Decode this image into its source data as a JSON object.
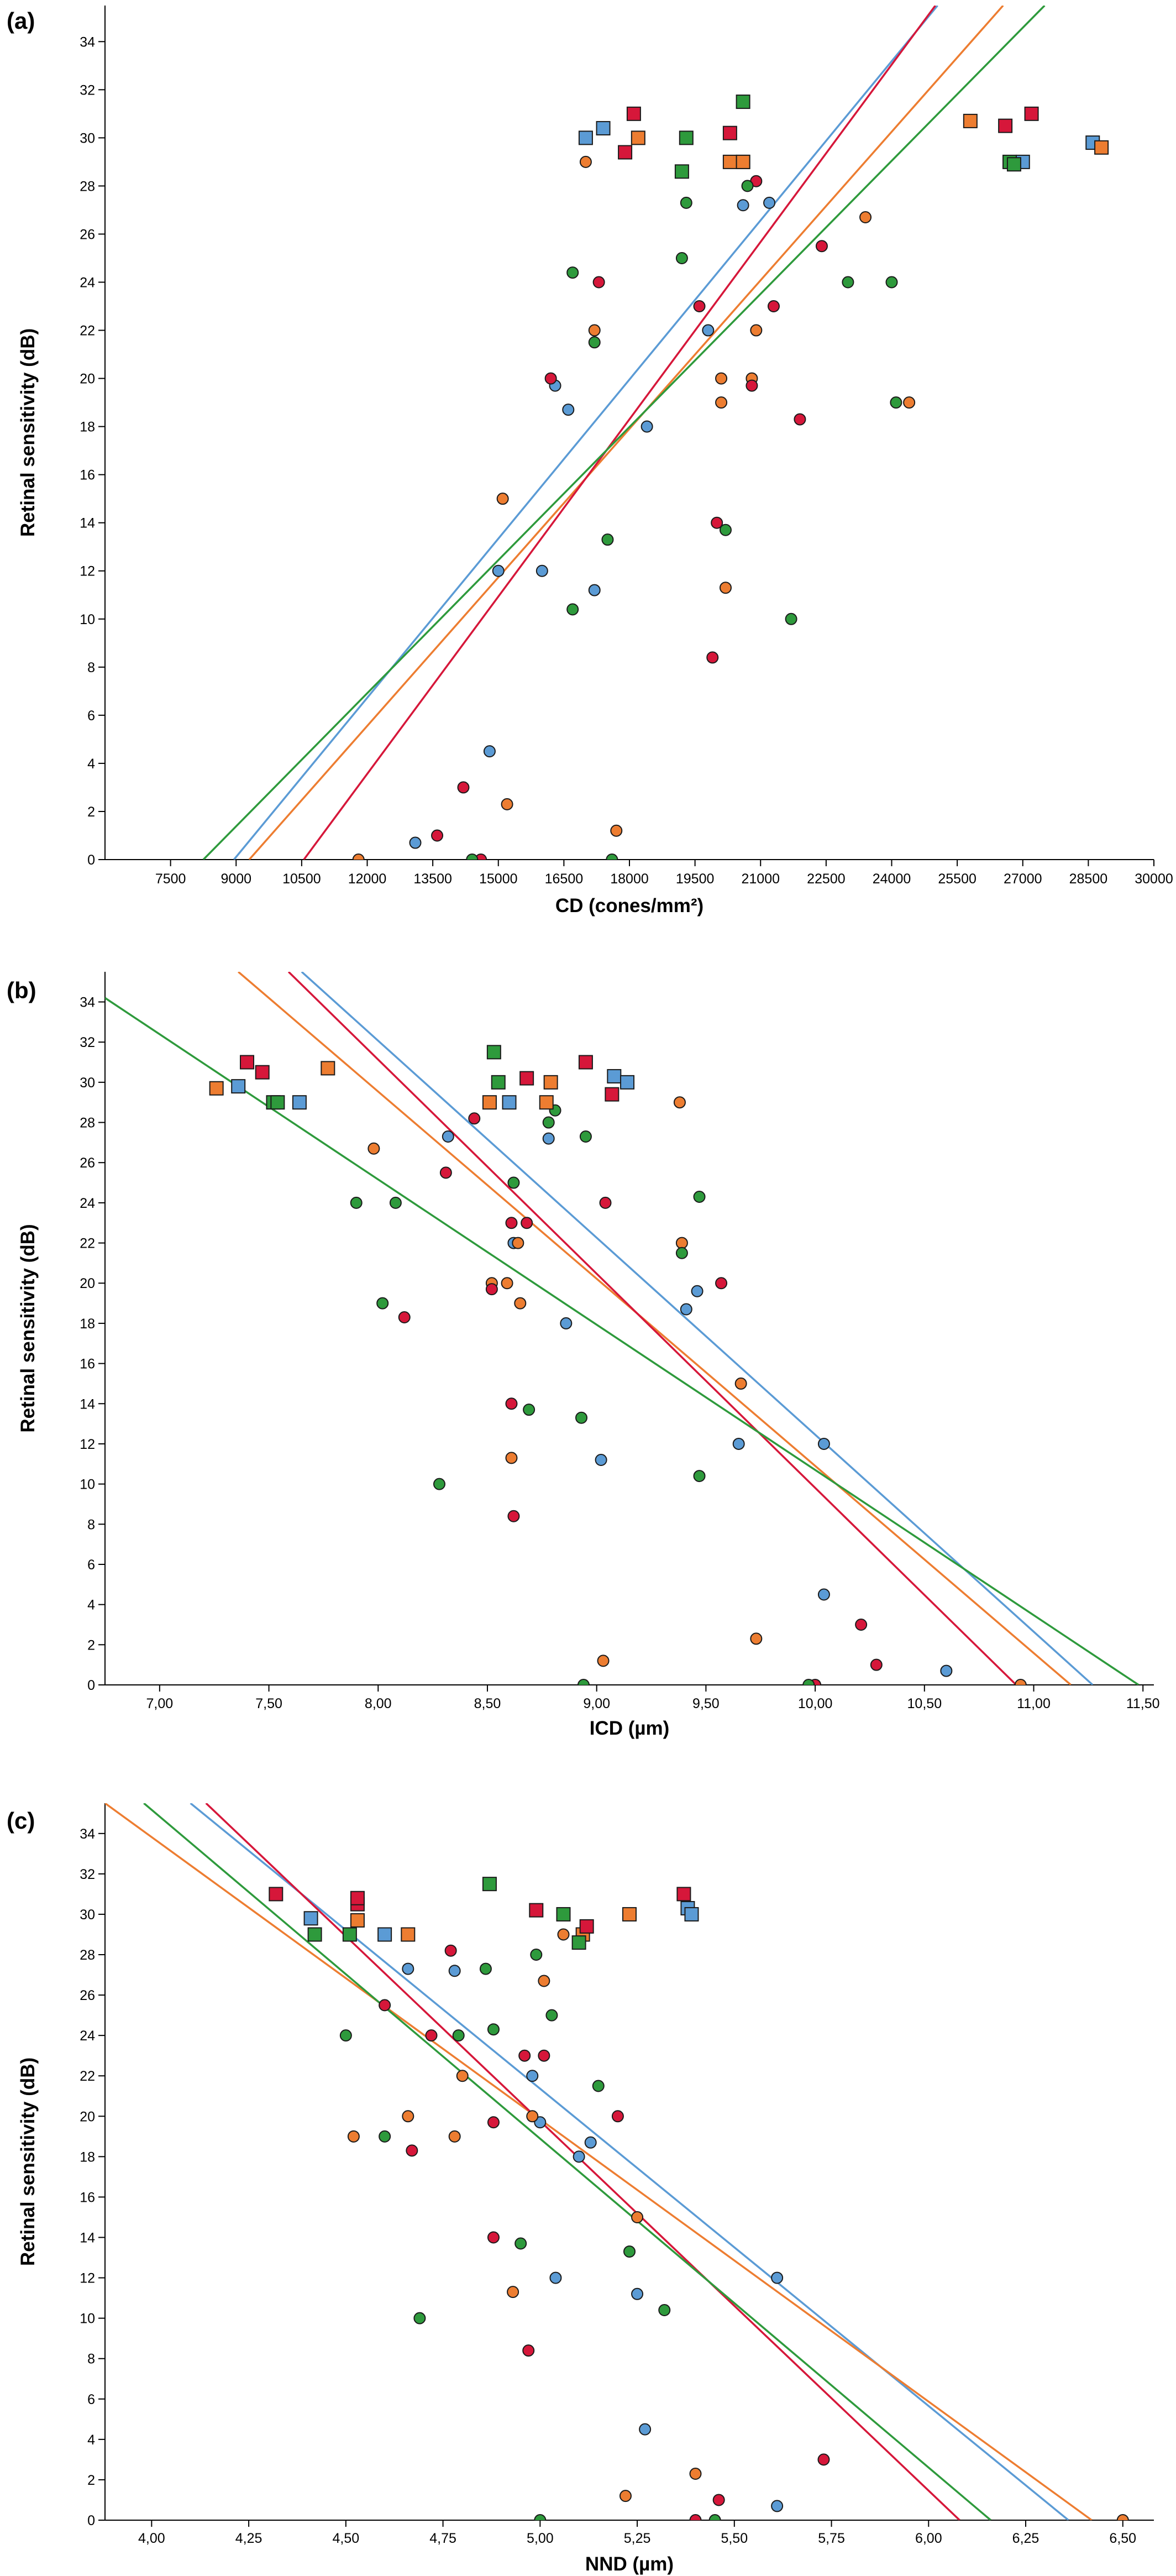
{
  "colors": {
    "blue": "#5b9bd5",
    "orange": "#ed7d31",
    "red": "#d6173a",
    "green": "#2e9a3c"
  },
  "chart_data": [
    {
      "type": "scatter",
      "panel_label": "(a)",
      "title": "",
      "xlabel": "CD (cones/mm²)",
      "ylabel": "Retinal sensitivity (dB)",
      "xlim": [
        6000,
        30000
      ],
      "ylim": [
        0,
        35.5
      ],
      "x_ticks": [
        "7500",
        "9000",
        "10500",
        "12000",
        "13500",
        "15000",
        "16500",
        "18000",
        "19500",
        "21000",
        "22500",
        "24000",
        "25500",
        "27000",
        "28500",
        "30000"
      ],
      "x_tick_values": [
        7500,
        9000,
        10500,
        12000,
        13500,
        15000,
        16500,
        18000,
        19500,
        21000,
        22500,
        24000,
        25500,
        27000,
        28500,
        30000
      ],
      "y_ticks": [
        "0",
        "2",
        "4",
        "6",
        "8",
        "10",
        "12",
        "14",
        "16",
        "18",
        "20",
        "22",
        "24",
        "26",
        "28",
        "30",
        "32",
        "34"
      ],
      "y_tick_values": [
        0,
        2,
        4,
        6,
        8,
        10,
        12,
        14,
        16,
        18,
        20,
        22,
        24,
        26,
        28,
        30,
        32,
        34
      ],
      "fit_lines": [
        {
          "color": "blue",
          "x1": 8950,
          "y1": 0,
          "x2": 25050,
          "y2": 35.5
        },
        {
          "color": "orange",
          "x1": 9300,
          "y1": 0,
          "x2": 26550,
          "y2": 35.5
        },
        {
          "color": "red",
          "x1": 10550,
          "y1": 0,
          "x2": 25000,
          "y2": 35.5
        },
        {
          "color": "green",
          "x1": 8250,
          "y1": 0,
          "x2": 27500,
          "y2": 35.5
        }
      ],
      "circles": {
        "blue": [
          [
            15000,
            12
          ],
          [
            16000,
            12
          ],
          [
            16300,
            19.7
          ],
          [
            16600,
            18.7
          ],
          [
            17200,
            11.2
          ],
          [
            18400,
            18
          ],
          [
            19800,
            22
          ],
          [
            20600,
            27.2
          ],
          [
            21200,
            27.3
          ],
          [
            14800,
            4.5
          ],
          [
            13100,
            0.7
          ]
        ],
        "orange": [
          [
            11800,
            0
          ],
          [
            15100,
            15
          ],
          [
            15200,
            2.3
          ],
          [
            17000,
            29
          ],
          [
            17200,
            22
          ],
          [
            17700,
            1.2
          ],
          [
            20100,
            19
          ],
          [
            20100,
            20
          ],
          [
            20200,
            11.3
          ],
          [
            20800,
            20
          ],
          [
            20900,
            22
          ],
          [
            23400,
            26.7
          ],
          [
            24400,
            19
          ]
        ],
        "red": [
          [
            13600,
            1
          ],
          [
            14200,
            3
          ],
          [
            14600,
            0
          ],
          [
            16200,
            20
          ],
          [
            17300,
            24
          ],
          [
            19600,
            23
          ],
          [
            20000,
            14
          ],
          [
            19900,
            8.4
          ],
          [
            20800,
            19.7
          ],
          [
            20900,
            28.2
          ],
          [
            21300,
            23
          ],
          [
            21900,
            18.3
          ],
          [
            22400,
            25.5
          ]
        ],
        "green": [
          [
            14400,
            0
          ],
          [
            16700,
            24.4
          ],
          [
            16700,
            10.4
          ],
          [
            17500,
            13.3
          ],
          [
            17600,
            0
          ],
          [
            17200,
            21.5
          ],
          [
            19300,
            27.3
          ],
          [
            19200,
            25
          ],
          [
            20200,
            13.7
          ],
          [
            20700,
            28
          ],
          [
            21700,
            10
          ],
          [
            23000,
            24
          ],
          [
            24000,
            24
          ],
          [
            24100,
            19
          ]
        ]
      },
      "squares": {
        "blue": [
          [
            17000,
            30
          ],
          [
            17400,
            30.4
          ],
          [
            20600,
            29
          ],
          [
            27000,
            29
          ],
          [
            28600,
            29.8
          ]
        ],
        "orange": [
          [
            18200,
            30
          ],
          [
            20300,
            29
          ],
          [
            20600,
            29
          ],
          [
            25800,
            30.7
          ],
          [
            28800,
            29.6
          ]
        ],
        "red": [
          [
            17900,
            29.4
          ],
          [
            18100,
            31
          ],
          [
            20300,
            30.2
          ],
          [
            26600,
            30.5
          ],
          [
            27200,
            31
          ]
        ],
        "green": [
          [
            19200,
            28.6
          ],
          [
            19300,
            30
          ],
          [
            20600,
            31.5
          ],
          [
            26700,
            29
          ],
          [
            26800,
            28.9
          ]
        ]
      }
    },
    {
      "type": "scatter",
      "panel_label": "(b)",
      "title": "",
      "xlabel": "ICD (µm)",
      "ylabel": "Retinal sensitivity (dB)",
      "xlim": [
        6.75,
        11.55
      ],
      "ylim": [
        0,
        35.5
      ],
      "x_ticks": [
        "7,00",
        "7,50",
        "8,00",
        "8,50",
        "9,00",
        "9,50",
        "10,00",
        "10,50",
        "11,00",
        "11,50"
      ],
      "x_tick_values": [
        7.0,
        7.5,
        8.0,
        8.5,
        9.0,
        9.5,
        10.0,
        10.5,
        11.0,
        11.5
      ],
      "y_ticks": [
        "0",
        "2",
        "4",
        "6",
        "8",
        "10",
        "12",
        "14",
        "16",
        "18",
        "20",
        "22",
        "24",
        "26",
        "28",
        "30",
        "32",
        "34"
      ],
      "y_tick_values": [
        0,
        2,
        4,
        6,
        8,
        10,
        12,
        14,
        16,
        18,
        20,
        22,
        24,
        26,
        28,
        30,
        32,
        34
      ],
      "fit_lines": [
        {
          "color": "blue",
          "x1": 7.65,
          "y1": 35.5,
          "x2": 11.27,
          "y2": 0
        },
        {
          "color": "orange",
          "x1": 7.36,
          "y1": 35.5,
          "x2": 11.17,
          "y2": 0
        },
        {
          "color": "red",
          "x1": 7.59,
          "y1": 35.5,
          "x2": 10.92,
          "y2": 0
        },
        {
          "color": "green",
          "x1": 6.75,
          "y1": 34.2,
          "x2": 11.48,
          "y2": 0
        }
      ],
      "circles": {
        "blue": [
          [
            8.32,
            27.3
          ],
          [
            8.78,
            27.2
          ],
          [
            8.62,
            22
          ],
          [
            8.86,
            18
          ],
          [
            9.02,
            11.2
          ],
          [
            9.41,
            18.7
          ],
          [
            9.46,
            19.6
          ],
          [
            9.65,
            12
          ],
          [
            10.04,
            12
          ],
          [
            10.04,
            4.5
          ],
          [
            10.6,
            0.7
          ]
        ],
        "orange": [
          [
            7.98,
            26.7
          ],
          [
            8.52,
            20
          ],
          [
            8.59,
            20
          ],
          [
            8.64,
            22
          ],
          [
            8.65,
            19
          ],
          [
            8.61,
            11.3
          ],
          [
            9.03,
            1.2
          ],
          [
            9.38,
            29
          ],
          [
            9.39,
            22
          ],
          [
            9.66,
            15
          ],
          [
            9.73,
            2.3
          ],
          [
            10.94,
            0
          ]
        ],
        "red": [
          [
            8.12,
            18.3
          ],
          [
            8.31,
            25.5
          ],
          [
            8.44,
            28.2
          ],
          [
            8.52,
            19.7
          ],
          [
            8.61,
            23
          ],
          [
            8.61,
            14
          ],
          [
            8.62,
            8.4
          ],
          [
            8.68,
            23
          ],
          [
            9.04,
            24
          ],
          [
            9.57,
            20
          ],
          [
            10.0,
            0
          ],
          [
            10.21,
            3
          ],
          [
            10.28,
            1
          ]
        ],
        "green": [
          [
            7.9,
            24
          ],
          [
            8.02,
            19
          ],
          [
            8.08,
            24
          ],
          [
            8.28,
            10
          ],
          [
            8.62,
            25
          ],
          [
            8.69,
            13.7
          ],
          [
            8.78,
            28
          ],
          [
            8.81,
            28.6
          ],
          [
            8.93,
            13.3
          ],
          [
            8.95,
            27.3
          ],
          [
            8.94,
            0
          ],
          [
            9.39,
            21.5
          ],
          [
            9.47,
            24.3
          ],
          [
            9.47,
            10.4
          ],
          [
            9.97,
            0
          ]
        ]
      },
      "squares": {
        "blue": [
          [
            7.36,
            29.8
          ],
          [
            7.64,
            29
          ],
          [
            8.6,
            29
          ],
          [
            9.08,
            30.3
          ],
          [
            9.14,
            30
          ]
        ],
        "orange": [
          [
            7.26,
            29.7
          ],
          [
            7.77,
            30.7
          ],
          [
            8.51,
            29
          ],
          [
            8.77,
            29
          ],
          [
            8.79,
            30
          ]
        ],
        "red": [
          [
            7.4,
            31
          ],
          [
            7.47,
            30.5
          ],
          [
            8.68,
            30.2
          ],
          [
            8.95,
            31
          ],
          [
            9.07,
            29.4
          ]
        ],
        "green": [
          [
            7.52,
            29
          ],
          [
            7.54,
            29
          ],
          [
            8.53,
            31.5
          ],
          [
            8.55,
            30
          ]
        ]
      }
    },
    {
      "type": "scatter",
      "panel_label": "(c)",
      "title": "",
      "xlabel": "NND (µm)",
      "ylabel": "Retinal sensitivity (dB)",
      "xlim": [
        3.88,
        6.58
      ],
      "ylim": [
        0,
        35.5
      ],
      "x_ticks": [
        "4,00",
        "4,25",
        "4,50",
        "4,75",
        "5,00",
        "5,25",
        "5,50",
        "5,75",
        "6,00",
        "6,25",
        "6,50"
      ],
      "x_tick_values": [
        4.0,
        4.25,
        4.5,
        4.75,
        5.0,
        5.25,
        5.5,
        5.75,
        6.0,
        6.25,
        6.5
      ],
      "y_ticks": [
        "0",
        "2",
        "4",
        "6",
        "8",
        "10",
        "12",
        "14",
        "16",
        "18",
        "20",
        "22",
        "24",
        "26",
        "28",
        "30",
        "32",
        "34"
      ],
      "y_tick_values": [
        0,
        2,
        4,
        6,
        8,
        10,
        12,
        14,
        16,
        18,
        20,
        22,
        24,
        26,
        28,
        30,
        32,
        34
      ],
      "fit_lines": [
        {
          "color": "blue",
          "x1": 4.1,
          "y1": 35.5,
          "x2": 6.36,
          "y2": 0
        },
        {
          "color": "orange",
          "x1": 3.88,
          "y1": 35.5,
          "x2": 6.42,
          "y2": 0
        },
        {
          "color": "red",
          "x1": 4.14,
          "y1": 35.5,
          "x2": 6.08,
          "y2": 0
        },
        {
          "color": "green",
          "x1": 3.98,
          "y1": 35.5,
          "x2": 6.16,
          "y2": 0
        }
      ],
      "circles": {
        "blue": [
          [
            4.66,
            27.3
          ],
          [
            4.78,
            27.2
          ],
          [
            4.98,
            22
          ],
          [
            5.0,
            19.7
          ],
          [
            5.1,
            18
          ],
          [
            5.13,
            18.7
          ],
          [
            5.04,
            12
          ],
          [
            5.25,
            11.2
          ],
          [
            5.27,
            4.5
          ],
          [
            5.61,
            12
          ],
          [
            5.61,
            0.7
          ]
        ],
        "orange": [
          [
            4.52,
            19
          ],
          [
            4.66,
            20
          ],
          [
            4.78,
            19
          ],
          [
            4.8,
            22
          ],
          [
            4.93,
            11.3
          ],
          [
            4.98,
            20
          ],
          [
            5.01,
            26.7
          ],
          [
            5.06,
            29
          ],
          [
            5.22,
            1.2
          ],
          [
            5.25,
            15
          ],
          [
            5.4,
            2.3
          ],
          [
            6.5,
            0
          ]
        ],
        "red": [
          [
            4.6,
            25.5
          ],
          [
            4.67,
            18.3
          ],
          [
            4.72,
            24
          ],
          [
            4.77,
            28.2
          ],
          [
            4.88,
            19.7
          ],
          [
            4.88,
            14
          ],
          [
            4.96,
            23
          ],
          [
            4.97,
            8.4
          ],
          [
            5.01,
            23
          ],
          [
            5.2,
            20
          ],
          [
            5.4,
            0
          ],
          [
            5.46,
            1
          ],
          [
            5.73,
            3
          ]
        ],
        "green": [
          [
            4.5,
            24
          ],
          [
            4.6,
            19
          ],
          [
            4.69,
            10
          ],
          [
            4.79,
            24
          ],
          [
            4.86,
            27.3
          ],
          [
            4.88,
            24.3
          ],
          [
            4.95,
            13.7
          ],
          [
            4.99,
            28
          ],
          [
            5.03,
            25
          ],
          [
            5.0,
            0
          ],
          [
            5.15,
            21.5
          ],
          [
            5.23,
            13.3
          ],
          [
            5.32,
            10.4
          ],
          [
            5.45,
            0
          ]
        ]
      },
      "squares": {
        "blue": [
          [
            4.41,
            29.8
          ],
          [
            4.6,
            29
          ],
          [
            5.38,
            30.3
          ],
          [
            5.39,
            30
          ]
        ],
        "orange": [
          [
            4.53,
            29.7
          ],
          [
            4.66,
            29
          ],
          [
            5.11,
            29
          ],
          [
            5.23,
            30
          ]
        ],
        "red": [
          [
            4.32,
            31
          ],
          [
            4.53,
            30.5
          ],
          [
            4.53,
            30.8
          ],
          [
            4.99,
            30.2
          ],
          [
            5.12,
            29.4
          ],
          [
            5.37,
            31
          ]
        ],
        "green": [
          [
            4.42,
            29
          ],
          [
            4.51,
            29
          ],
          [
            4.87,
            31.5
          ],
          [
            5.06,
            30
          ],
          [
            5.1,
            28.6
          ]
        ]
      }
    }
  ]
}
